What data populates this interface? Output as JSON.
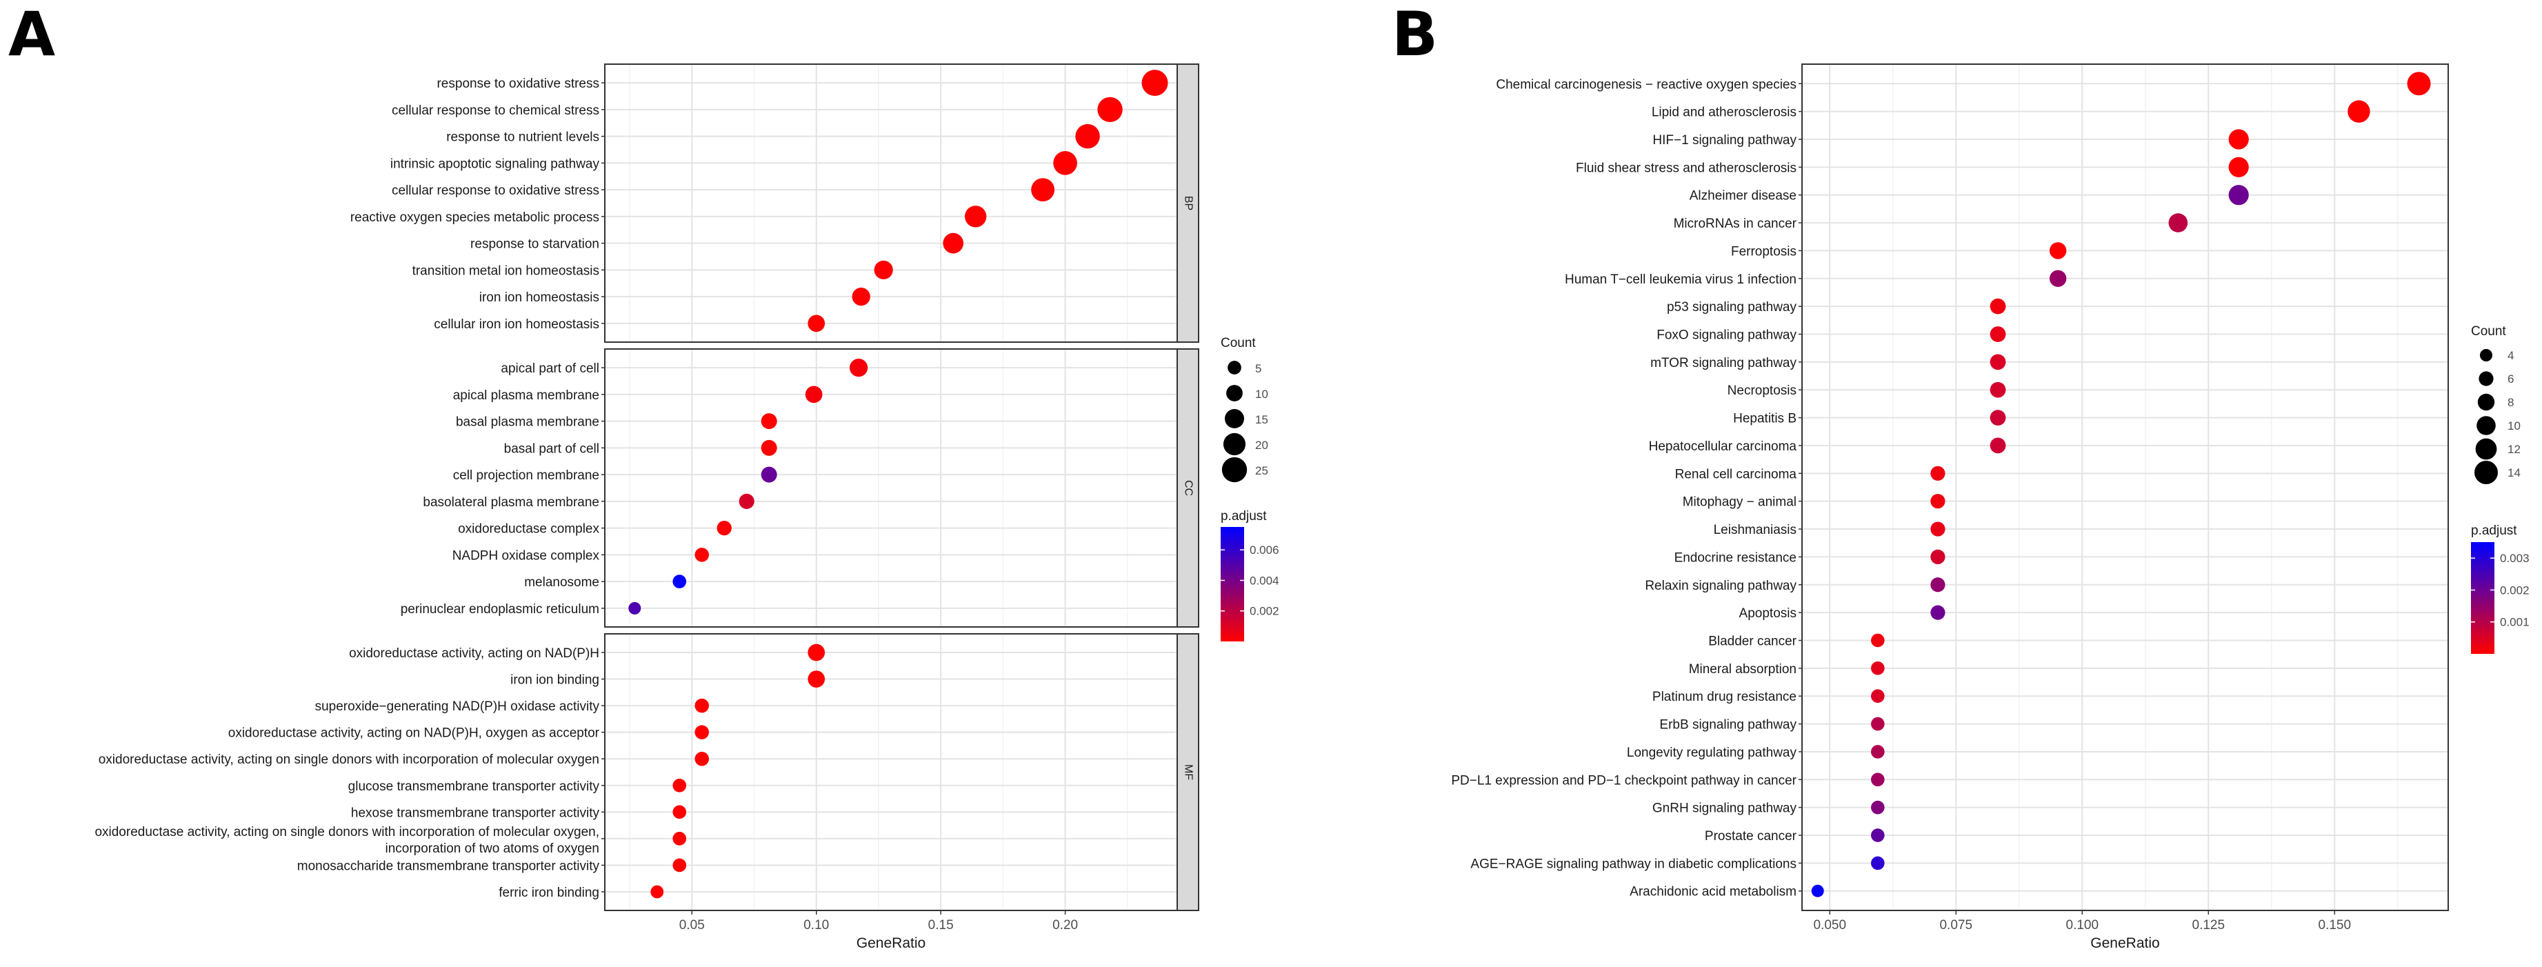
{
  "figure": {
    "panel_a_letter": "A",
    "panel_b_letter": "B"
  },
  "chart_data": [
    {
      "type": "scatter",
      "panel": "A",
      "xlabel": "GeneRatio",
      "ylabel": "",
      "xlim": [
        0.015,
        0.245
      ],
      "xticks": [
        0.05,
        0.1,
        0.15,
        0.2
      ],
      "xtick_labels": [
        "0.05",
        "0.10",
        "0.15",
        "0.20"
      ],
      "grid": true,
      "facets": [
        {
          "name": "BP",
          "terms": [
            {
              "label": "response to oxidative stress",
              "x": 0.236,
              "count": 27,
              "padj": 0.0
            },
            {
              "label": "cellular response to chemical stress",
              "x": 0.218,
              "count": 25,
              "padj": 0.0
            },
            {
              "label": "response to nutrient levels",
              "x": 0.209,
              "count": 24,
              "padj": 0.0001
            },
            {
              "label": "intrinsic apoptotic signaling pathway",
              "x": 0.2,
              "count": 23,
              "padj": 0.0
            },
            {
              "label": "cellular response to oxidative stress",
              "x": 0.191,
              "count": 22,
              "padj": 0.0
            },
            {
              "label": "reactive oxygen species metabolic process",
              "x": 0.164,
              "count": 19,
              "padj": 0.0
            },
            {
              "label": "response to starvation",
              "x": 0.155,
              "count": 17,
              "padj": 0.0001
            },
            {
              "label": "transition metal ion homeostasis",
              "x": 0.127,
              "count": 14,
              "padj": 0.0001
            },
            {
              "label": "iron ion homeostasis",
              "x": 0.118,
              "count": 13,
              "padj": 0.0
            },
            {
              "label": "cellular iron ion homeostasis",
              "x": 0.1,
              "count": 11,
              "padj": 0.0
            }
          ]
        },
        {
          "name": "CC",
          "terms": [
            {
              "label": "apical part of cell",
              "x": 0.117,
              "count": 13,
              "padj": 0.0003
            },
            {
              "label": "apical plasma membrane",
              "x": 0.099,
              "count": 11,
              "padj": 0.0003
            },
            {
              "label": "basal plasma membrane",
              "x": 0.081,
              "count": 9,
              "padj": 0.0
            },
            {
              "label": "basal part of cell",
              "x": 0.081,
              "count": 9,
              "padj": 0.0001
            },
            {
              "label": "cell projection membrane",
              "x": 0.081,
              "count": 9,
              "padj": 0.0045
            },
            {
              "label": "basolateral plasma membrane",
              "x": 0.072,
              "count": 8,
              "padj": 0.0012
            },
            {
              "label": "oxidoreductase complex",
              "x": 0.063,
              "count": 7,
              "padj": 0.0001
            },
            {
              "label": "NADPH oxidase complex",
              "x": 0.054,
              "count": 6,
              "padj": 0.0
            },
            {
              "label": "melanosome",
              "x": 0.045,
              "count": 5,
              "padj": 0.0074
            },
            {
              "label": "perinuclear endoplasmic reticulum",
              "x": 0.027,
              "count": 3,
              "padj": 0.0052
            }
          ]
        },
        {
          "name": "MF",
          "terms": [
            {
              "label": "oxidoreductase activity, acting on NAD(P)H",
              "x": 0.1,
              "count": 11,
              "padj": 0.0
            },
            {
              "label": "iron ion binding",
              "x": 0.1,
              "count": 11,
              "padj": 0.0
            },
            {
              "label": "superoxide−generating NAD(P)H oxidase activity",
              "x": 0.054,
              "count": 6,
              "padj": 0.0
            },
            {
              "label": "oxidoreductase activity, acting on NAD(P)H, oxygen as acceptor",
              "x": 0.054,
              "count": 6,
              "padj": 0.0
            },
            {
              "label": "oxidoreductase activity, acting on single donors with incorporation of molecular oxygen",
              "x": 0.054,
              "count": 6,
              "padj": 0.0
            },
            {
              "label": "glucose transmembrane transporter activity",
              "x": 0.045,
              "count": 5,
              "padj": 0.0
            },
            {
              "label": "hexose transmembrane transporter activity",
              "x": 0.045,
              "count": 5,
              "padj": 0.0
            },
            {
              "label": "oxidoreductase activity, acting on single donors with incorporation of molecular oxygen, incorporation of two atoms of oxygen",
              "label_lines": [
                "oxidoreductase activity, acting on single donors with incorporation of molecular oxygen,",
                "incorporation of two atoms of oxygen"
              ],
              "x": 0.045,
              "count": 5,
              "padj": 0.0
            },
            {
              "label": "monosaccharide transmembrane transporter activity",
              "x": 0.045,
              "count": 5,
              "padj": 0.0
            },
            {
              "label": "ferric iron binding",
              "x": 0.036,
              "count": 4,
              "padj": 0.0001
            }
          ]
        }
      ],
      "size_legend": {
        "title": "Count",
        "values": [
          5,
          10,
          15,
          20,
          25
        ],
        "labels": [
          "5",
          "10",
          "15",
          "20",
          "25"
        ]
      },
      "color_legend": {
        "title": "p.adjust",
        "min": 0,
        "max": 0.0075,
        "ticks": [
          0.002,
          0.004,
          0.006
        ],
        "tick_labels": [
          "0.002",
          "0.004",
          "0.006"
        ],
        "low_color": "#ff0000",
        "high_color": "#0000ff"
      }
    },
    {
      "type": "scatter",
      "panel": "B",
      "xlabel": "GeneRatio",
      "ylabel": "",
      "xlim": [
        0.0445,
        0.1725
      ],
      "xticks": [
        0.05,
        0.075,
        0.1,
        0.125,
        0.15
      ],
      "xtick_labels": [
        "0.050",
        "0.075",
        "0.100",
        "0.125",
        "0.150"
      ],
      "grid": true,
      "terms": [
        {
          "label": "Chemical carcinogenesis − reactive oxygen species",
          "x": 0.1667,
          "count": 14,
          "padj": 0.0
        },
        {
          "label": "Lipid and atherosclerosis",
          "x": 0.1548,
          "count": 13,
          "padj": 0.0
        },
        {
          "label": "HIF−1 signaling pathway",
          "x": 0.131,
          "count": 11,
          "padj": 0.0
        },
        {
          "label": "Fluid shear stress and atherosclerosis",
          "x": 0.131,
          "count": 11,
          "padj": 0.0
        },
        {
          "label": "Alzheimer disease",
          "x": 0.131,
          "count": 11,
          "padj": 0.002
        },
        {
          "label": "MicroRNAs in cancer",
          "x": 0.119,
          "count": 10,
          "padj": 0.0009
        },
        {
          "label": "Ferroptosis",
          "x": 0.0952,
          "count": 8,
          "padj": 0.0
        },
        {
          "label": "Human T−cell leukemia virus 1 infection",
          "x": 0.0952,
          "count": 8,
          "padj": 0.0014
        },
        {
          "label": "p53 signaling pathway",
          "x": 0.0833,
          "count": 7,
          "padj": 0.0002
        },
        {
          "label": "FoxO signaling pathway",
          "x": 0.0833,
          "count": 7,
          "padj": 0.0003
        },
        {
          "label": "mTOR signaling pathway",
          "x": 0.0833,
          "count": 7,
          "padj": 0.0005
        },
        {
          "label": "Necroptosis",
          "x": 0.0833,
          "count": 7,
          "padj": 0.0006
        },
        {
          "label": "Hepatitis B",
          "x": 0.0833,
          "count": 7,
          "padj": 0.0007
        },
        {
          "label": "Hepatocellular carcinoma",
          "x": 0.0833,
          "count": 7,
          "padj": 0.0007
        },
        {
          "label": "Renal cell carcinoma",
          "x": 0.0714,
          "count": 6,
          "padj": 0.0002
        },
        {
          "label": "Mitophagy − animal",
          "x": 0.0714,
          "count": 6,
          "padj": 0.0002
        },
        {
          "label": "Leishmaniasis",
          "x": 0.0714,
          "count": 6,
          "padj": 0.0003
        },
        {
          "label": "Endocrine resistance",
          "x": 0.0714,
          "count": 6,
          "padj": 0.0006
        },
        {
          "label": "Relaxin signaling pathway",
          "x": 0.0714,
          "count": 6,
          "padj": 0.0015
        },
        {
          "label": "Apoptosis",
          "x": 0.0714,
          "count": 6,
          "padj": 0.002
        },
        {
          "label": "Bladder cancer",
          "x": 0.0595,
          "count": 5,
          "padj": 0.0002
        },
        {
          "label": "Mineral absorption",
          "x": 0.0595,
          "count": 5,
          "padj": 0.0004
        },
        {
          "label": "Platinum drug resistance",
          "x": 0.0595,
          "count": 5,
          "padj": 0.0005
        },
        {
          "label": "ErbB signaling pathway",
          "x": 0.0595,
          "count": 5,
          "padj": 0.001
        },
        {
          "label": "Longevity regulating pathway",
          "x": 0.0595,
          "count": 5,
          "padj": 0.0011
        },
        {
          "label": "PD−L1 expression and PD−1 checkpoint pathway in cancer",
          "x": 0.0595,
          "count": 5,
          "padj": 0.0013
        },
        {
          "label": "GnRH signaling pathway",
          "x": 0.0595,
          "count": 5,
          "padj": 0.0017
        },
        {
          "label": "Prostate cancer",
          "x": 0.0595,
          "count": 5,
          "padj": 0.0022
        },
        {
          "label": "AGE−RAGE signaling pathway in diabetic complications",
          "x": 0.0595,
          "count": 5,
          "padj": 0.0029
        },
        {
          "label": "Arachidonic acid metabolism",
          "x": 0.0476,
          "count": 4,
          "padj": 0.0034
        }
      ],
      "size_legend": {
        "title": "Count",
        "values": [
          4,
          6,
          8,
          10,
          12,
          14
        ],
        "labels": [
          "4",
          "6",
          "8",
          "10",
          "12",
          "14"
        ]
      },
      "color_legend": {
        "title": "p.adjust",
        "min": 0,
        "max": 0.0035,
        "ticks": [
          0.001,
          0.002,
          0.003
        ],
        "tick_labels": [
          "0.001",
          "0.002",
          "0.003"
        ],
        "low_color": "#ff0000",
        "high_color": "#0000ff"
      }
    }
  ]
}
